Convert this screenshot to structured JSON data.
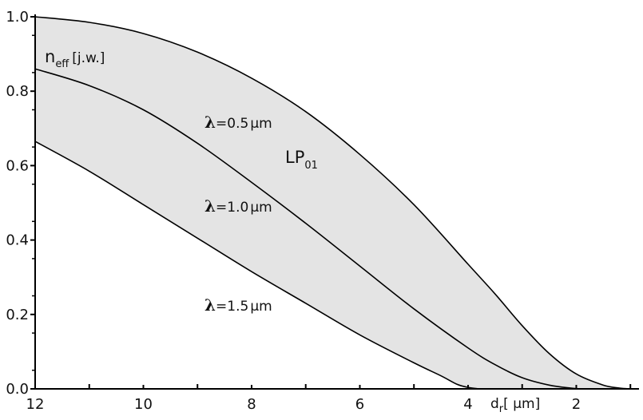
{
  "chart_data": {
    "type": "line",
    "ylabel": {
      "main": "n",
      "sub": "eff",
      "unit": "[j.w.]"
    },
    "xlabel": {
      "main": "d",
      "sub": "r",
      "unit": "[ μm]"
    },
    "xlim": [
      12,
      0.9
    ],
    "ylim": [
      0.0,
      1.0
    ],
    "x_ticks": [
      "12",
      "10",
      "8",
      "6",
      "4",
      "2"
    ],
    "y_ticks": [
      "0.0",
      "0.2",
      "0.4",
      "0.6",
      "0.8",
      "1.0"
    ],
    "region_annotation": {
      "main": "LP",
      "sub": "01"
    },
    "fill_between": {
      "upper": "λ=0.5μm",
      "lower": "λ=1.5μm",
      "color": "#e4e4e4"
    },
    "series": [
      {
        "name": "λ=0.5μm",
        "label": {
          "sym": "λ",
          "value": "=0.5",
          "unit": "μm"
        },
        "x": [
          12,
          11,
          10,
          9,
          8,
          7,
          6,
          5,
          4,
          3.5,
          3,
          2.5,
          2,
          1.5,
          1.2,
          1.0
        ],
        "y": [
          1.0,
          0.985,
          0.955,
          0.905,
          0.835,
          0.745,
          0.63,
          0.495,
          0.335,
          0.255,
          0.17,
          0.095,
          0.04,
          0.01,
          0.002,
          0.0
        ]
      },
      {
        "name": "λ=1.0μm",
        "label": {
          "sym": "λ",
          "value": "=1.0",
          "unit": "μm"
        },
        "x": [
          12,
          11,
          10,
          9,
          8,
          7,
          6,
          5,
          4,
          3.5,
          3,
          2.5,
          2.1,
          1.9
        ],
        "y": [
          0.86,
          0.815,
          0.75,
          0.66,
          0.555,
          0.445,
          0.33,
          0.215,
          0.11,
          0.065,
          0.03,
          0.01,
          0.002,
          0.0
        ]
      },
      {
        "name": "λ=1.5μm",
        "label": {
          "sym": "λ",
          "value": "=1.5",
          "unit": "μm"
        },
        "x": [
          12,
          11,
          10,
          9,
          8,
          7,
          6,
          5,
          4.5,
          4.2,
          4.0,
          3.8
        ],
        "y": [
          0.665,
          0.585,
          0.495,
          0.405,
          0.315,
          0.23,
          0.145,
          0.07,
          0.035,
          0.012,
          0.004,
          0.0
        ]
      }
    ]
  }
}
